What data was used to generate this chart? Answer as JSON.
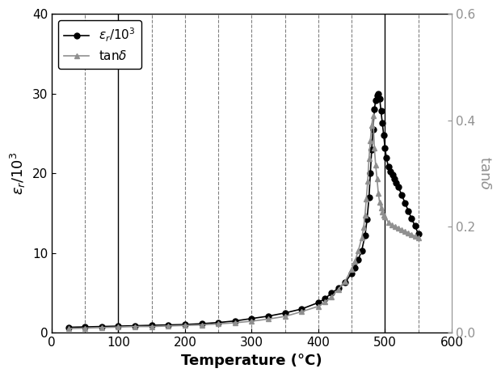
{
  "xlabel": "Temperature (°C)",
  "xlim": [
    20,
    600
  ],
  "ylim_left": [
    0,
    40
  ],
  "ylim_right": [
    0.0,
    0.6
  ],
  "xticks": [
    0,
    100,
    200,
    300,
    400,
    500,
    600
  ],
  "yticks_left": [
    0,
    10,
    20,
    30,
    40
  ],
  "yticks_right": [
    0.0,
    0.2,
    0.4,
    0.6
  ],
  "solid_vlines": [
    100,
    500
  ],
  "dashed_vlines": [
    50,
    150,
    200,
    250,
    300,
    350,
    400,
    450,
    550
  ],
  "line_color_black": "#000000",
  "line_color_gray": "#909090",
  "background": "#ffffff",
  "eps_temperature": [
    25,
    50,
    75,
    100,
    125,
    150,
    175,
    200,
    225,
    250,
    275,
    300,
    325,
    350,
    375,
    400,
    410,
    420,
    430,
    440,
    450,
    455,
    460,
    465,
    470,
    473,
    476,
    478,
    480,
    482,
    484,
    486,
    488,
    490,
    492,
    494,
    496,
    498,
    500,
    502,
    505,
    508,
    511,
    514,
    517,
    520,
    525,
    530,
    535,
    540,
    545,
    550
  ],
  "eps_values": [
    0.7,
    0.75,
    0.8,
    0.85,
    0.9,
    0.95,
    1.0,
    1.05,
    1.15,
    1.3,
    1.5,
    1.8,
    2.1,
    2.5,
    3.0,
    3.8,
    4.3,
    5.0,
    5.6,
    6.3,
    7.5,
    8.2,
    9.2,
    10.3,
    12.2,
    14.2,
    17.0,
    20.0,
    23.0,
    25.5,
    28.0,
    29.2,
    29.8,
    30.0,
    29.4,
    27.8,
    26.3,
    24.8,
    23.2,
    22.0,
    20.8,
    20.2,
    19.8,
    19.3,
    18.8,
    18.3,
    17.3,
    16.3,
    15.3,
    14.3,
    13.4,
    12.4
  ],
  "tand_temperature": [
    25,
    50,
    75,
    100,
    125,
    150,
    175,
    200,
    225,
    250,
    275,
    300,
    325,
    350,
    375,
    400,
    410,
    420,
    430,
    440,
    450,
    455,
    460,
    465,
    468,
    470,
    472,
    474,
    476,
    478,
    480,
    482,
    484,
    486,
    488,
    490,
    492,
    494,
    496,
    498,
    500,
    505,
    510,
    515,
    520,
    525,
    530,
    535,
    540,
    545,
    550
  ],
  "tand_values": [
    0.008,
    0.009,
    0.01,
    0.011,
    0.012,
    0.012,
    0.013,
    0.014,
    0.015,
    0.017,
    0.019,
    0.022,
    0.026,
    0.031,
    0.04,
    0.05,
    0.058,
    0.068,
    0.082,
    0.097,
    0.12,
    0.135,
    0.155,
    0.178,
    0.198,
    0.222,
    0.252,
    0.285,
    0.328,
    0.362,
    0.39,
    0.408,
    0.348,
    0.315,
    0.29,
    0.262,
    0.245,
    0.235,
    0.228,
    0.222,
    0.218,
    0.208,
    0.203,
    0.2,
    0.197,
    0.194,
    0.191,
    0.188,
    0.185,
    0.182,
    0.178
  ]
}
